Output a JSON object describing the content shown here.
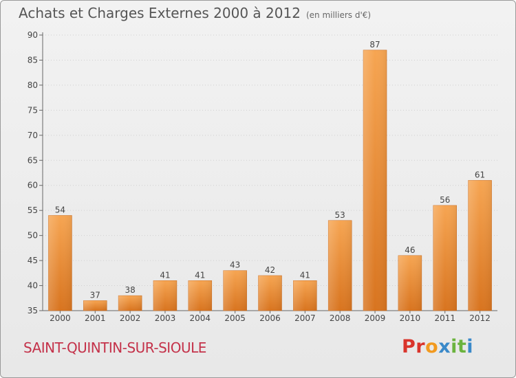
{
  "title": "Achats et Charges Externes 2000 à 2012",
  "subtitle": "(en milliers d'€)",
  "city": "SAINT-QUINTIN-SUR-SIOULE",
  "logo": {
    "text": "Proxiti",
    "colors": [
      "#d9342b",
      "#f29a1f",
      "#3a89c9",
      "#6bb33e"
    ]
  },
  "chart_data": {
    "type": "bar",
    "categories": [
      "2000",
      "2001",
      "2002",
      "2003",
      "2004",
      "2005",
      "2006",
      "2007",
      "2008",
      "2009",
      "2010",
      "2011",
      "2012"
    ],
    "values": [
      54,
      37,
      38,
      41,
      41,
      43,
      42,
      41,
      53,
      87,
      46,
      56,
      61
    ],
    "ylim": [
      35,
      90
    ],
    "yticks": [
      35,
      40,
      45,
      50,
      55,
      60,
      65,
      70,
      75,
      80,
      85,
      90
    ],
    "grid": true,
    "bar_color": "#f0923c"
  }
}
